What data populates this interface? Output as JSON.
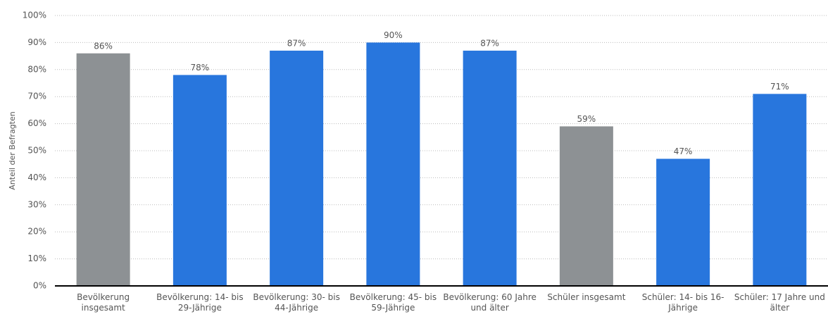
{
  "chart_data": {
    "type": "bar",
    "y_label": "Anteil der Befragten",
    "categories": [
      "Bevölkerung insgesamt",
      "Bevölkerung: 14- bis 29-Jährige",
      "Bevölkerung: 30- bis 44-Jährige",
      "Bevölkerung: 45- bis 59-Jährige",
      "Bevölkerung: 60 Jahre und älter",
      "Schüler insgesamt",
      "Schüler: 14- bis 16-Jährige",
      "Schüler: 17 Jahre und älter"
    ],
    "values": [
      86,
      78,
      87,
      90,
      87,
      59,
      47,
      71
    ],
    "value_labels": [
      "86%",
      "78%",
      "87%",
      "90%",
      "87%",
      "59%",
      "47%",
      "71%"
    ],
    "colors": [
      "#8d9194",
      "#2876dd",
      "#2876dd",
      "#2876dd",
      "#2876dd",
      "#8d9194",
      "#2876dd",
      "#2876dd"
    ],
    "ylim": [
      0,
      100
    ],
    "yticks": [
      {
        "value": 0,
        "label": "0%"
      },
      {
        "value": 10,
        "label": "10%"
      },
      {
        "value": 20,
        "label": "20%"
      },
      {
        "value": 30,
        "label": "30%"
      },
      {
        "value": 40,
        "label": "40%"
      },
      {
        "value": 50,
        "label": "50%"
      },
      {
        "value": 60,
        "label": "60%"
      },
      {
        "value": 70,
        "label": "70%"
      },
      {
        "value": 80,
        "label": "80%"
      },
      {
        "value": 90,
        "label": "90%"
      },
      {
        "value": 100,
        "label": "100%"
      }
    ],
    "grid": true
  }
}
